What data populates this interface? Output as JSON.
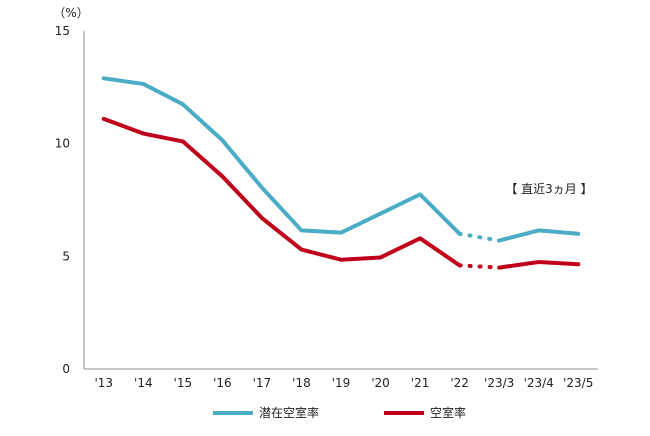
{
  "chart_data": {
    "type": "line",
    "y_unit_label": "（%）",
    "categories": [
      "'13",
      "'14",
      "'15",
      "'16",
      "'17",
      "'18",
      "'19",
      "'20",
      "'21",
      "'22",
      "'23/3",
      "'23/4",
      "'23/5"
    ],
    "ylim": [
      0,
      15
    ],
    "yticks": [
      0,
      5,
      10,
      15
    ],
    "grid": false,
    "legend_position": "bottom",
    "annotation": "【 直近3ヵ月 】",
    "series": [
      {
        "name": "潜在空室率",
        "color": "#4BACC6",
        "values": [
          12.9,
          12.65,
          11.75,
          10.15,
          8.05,
          6.15,
          6.05,
          6.9,
          7.75,
          6.0,
          5.7,
          6.15,
          6.0
        ]
      },
      {
        "name": "空室率",
        "color": "#C0001A",
        "values": [
          11.1,
          10.45,
          10.1,
          8.55,
          6.7,
          5.3,
          4.85,
          4.95,
          5.8,
          4.6,
          4.5,
          4.75,
          4.65
        ]
      }
    ],
    "dotted_segment_after_index": 9
  }
}
